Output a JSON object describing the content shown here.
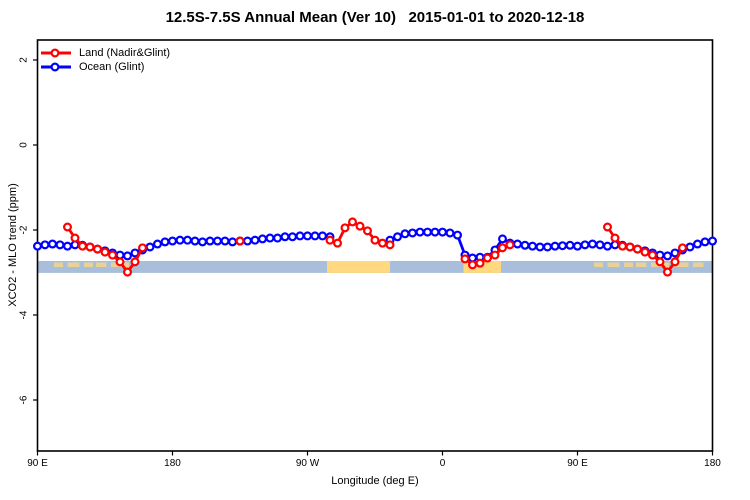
{
  "title": "12.5S-7.5S Annual Mean (Ver 10)   2015-01-01 to 2020-12-18",
  "chart_data": {
    "type": "line",
    "title": "12.5S-7.5S Annual Mean (Ver 10)   2015-01-01 to 2020-12-18",
    "xlabel": "Longitude (deg E)",
    "ylabel": "XCO2 - MLO trend (ppm)",
    "grid": false,
    "x_axis": {
      "min": 90,
      "max": 540,
      "note": "longitude increases eastward and wraps: 90E-180-90W-0-90E-180",
      "ticks": [
        {
          "pos": 90,
          "label": "90 E"
        },
        {
          "pos": 180,
          "label": "180"
        },
        {
          "pos": 270,
          "label": "90 W"
        },
        {
          "pos": 360,
          "label": "0"
        },
        {
          "pos": 450,
          "label": "90 E"
        },
        {
          "pos": 540,
          "label": "180"
        }
      ]
    },
    "y_axis": {
      "min": -7.2,
      "max": 2.47,
      "ticks": [
        {
          "pos": 2,
          "label": "2"
        },
        {
          "pos": 0,
          "label": "0"
        },
        {
          "pos": -2,
          "label": "-2"
        },
        {
          "pos": -4,
          "label": "-4"
        },
        {
          "pos": -6,
          "label": "-6"
        }
      ]
    },
    "legend": {
      "position": "top-left"
    },
    "series": [
      {
        "name": "Ocean (Glint)",
        "color": "#0000ff",
        "marker": "open-circle",
        "segments": [
          [
            [
              90,
              -2.38
            ],
            [
              95,
              -2.35
            ],
            [
              100,
              -2.33
            ],
            [
              105,
              -2.35
            ],
            [
              110,
              -2.38
            ],
            [
              115,
              -2.35
            ],
            [
              120,
              -2.36
            ],
            [
              125,
              -2.4
            ],
            [
              130,
              -2.45
            ],
            [
              135,
              -2.49
            ],
            [
              140,
              -2.54
            ],
            [
              145,
              -2.59
            ],
            [
              150,
              -2.61
            ],
            [
              155,
              -2.54
            ],
            [
              160,
              -2.47
            ],
            [
              165,
              -2.4
            ],
            [
              170,
              -2.33
            ],
            [
              175,
              -2.28
            ],
            [
              180,
              -2.26
            ],
            [
              185,
              -2.24
            ],
            [
              190,
              -2.24
            ],
            [
              195,
              -2.26
            ],
            [
              200,
              -2.28
            ],
            [
              205,
              -2.26
            ],
            [
              210,
              -2.26
            ],
            [
              215,
              -2.26
            ],
            [
              220,
              -2.28
            ],
            [
              225,
              -2.26
            ],
            [
              230,
              -2.26
            ],
            [
              235,
              -2.24
            ],
            [
              240,
              -2.21
            ],
            [
              245,
              -2.19
            ],
            [
              250,
              -2.19
            ],
            [
              255,
              -2.16
            ],
            [
              260,
              -2.16
            ],
            [
              265,
              -2.14
            ],
            [
              270,
              -2.14
            ],
            [
              275,
              -2.14
            ],
            [
              280,
              -2.14
            ],
            [
              285,
              -2.16
            ]
          ],
          [
            [
              325,
              -2.24
            ],
            [
              330,
              -2.16
            ],
            [
              335,
              -2.09
            ],
            [
              340,
              -2.07
            ],
            [
              345,
              -2.05
            ],
            [
              350,
              -2.05
            ],
            [
              355,
              -2.05
            ],
            [
              360,
              -2.05
            ],
            [
              365,
              -2.07
            ],
            [
              370,
              -2.12
            ],
            [
              375,
              -2.59
            ],
            [
              380,
              -2.66
            ],
            [
              385,
              -2.64
            ],
            [
              390,
              -2.64
            ],
            [
              395,
              -2.47
            ],
            [
              400,
              -2.21
            ],
            [
              405,
              -2.31
            ],
            [
              410,
              -2.33
            ],
            [
              415,
              -2.36
            ],
            [
              420,
              -2.38
            ],
            [
              425,
              -2.4
            ],
            [
              430,
              -2.4
            ],
            [
              435,
              -2.38
            ],
            [
              440,
              -2.37
            ],
            [
              445,
              -2.36
            ],
            [
              450,
              -2.38
            ],
            [
              455,
              -2.35
            ],
            [
              460,
              -2.33
            ],
            [
              465,
              -2.35
            ],
            [
              470,
              -2.38
            ],
            [
              475,
              -2.35
            ],
            [
              480,
              -2.36
            ],
            [
              485,
              -2.4
            ],
            [
              490,
              -2.45
            ],
            [
              495,
              -2.49
            ],
            [
              500,
              -2.54
            ],
            [
              505,
              -2.59
            ],
            [
              510,
              -2.61
            ],
            [
              515,
              -2.54
            ],
            [
              520,
              -2.47
            ],
            [
              525,
              -2.4
            ],
            [
              530,
              -2.33
            ],
            [
              535,
              -2.28
            ],
            [
              540,
              -2.26
            ]
          ]
        ]
      },
      {
        "name": "Land (Nadir&Glint)",
        "color": "#ff0000",
        "marker": "open-circle",
        "segments": [
          [
            [
              110,
              -1.93
            ],
            [
              115,
              -2.19
            ],
            [
              120,
              -2.38
            ],
            [
              125,
              -2.4
            ],
            [
              130,
              -2.45
            ],
            [
              135,
              -2.52
            ],
            [
              140,
              -2.59
            ],
            [
              145,
              -2.75
            ],
            [
              150,
              -2.99
            ],
            [
              155,
              -2.75
            ],
            [
              160,
              -2.42
            ]
          ],
          [
            [
              225,
              -2.26
            ]
          ],
          [
            [
              285,
              -2.24
            ],
            [
              290,
              -2.31
            ],
            [
              295,
              -1.95
            ],
            [
              300,
              -1.81
            ],
            [
              305,
              -1.91
            ],
            [
              310,
              -2.02
            ],
            [
              315,
              -2.24
            ],
            [
              320,
              -2.31
            ],
            [
              325,
              -2.35
            ]
          ],
          [
            [
              375,
              -2.68
            ],
            [
              380,
              -2.82
            ],
            [
              385,
              -2.78
            ],
            [
              390,
              -2.66
            ],
            [
              395,
              -2.59
            ],
            [
              400,
              -2.42
            ],
            [
              405,
              -2.35
            ]
          ],
          [
            [
              470,
              -1.93
            ],
            [
              475,
              -2.19
            ],
            [
              480,
              -2.38
            ],
            [
              485,
              -2.4
            ],
            [
              490,
              -2.45
            ],
            [
              495,
              -2.52
            ],
            [
              500,
              -2.59
            ],
            [
              505,
              -2.75
            ],
            [
              510,
              -2.99
            ],
            [
              515,
              -2.75
            ],
            [
              520,
              -2.42
            ]
          ]
        ]
      }
    ],
    "surface_band": {
      "meaning": "ocean/land geography strip along the latitude zone",
      "value_top": -2.73,
      "value_bottom": -3.01,
      "ocean_color": "#a9bedb",
      "land_color": "#ffd87f",
      "land_patches_deg": [
        [
          283,
          325
        ],
        [
          374,
          399
        ]
      ],
      "island_speckles_deg": [
        [
          101,
          107
        ],
        [
          110,
          118
        ],
        [
          121,
          127
        ],
        [
          129,
          136
        ],
        [
          139,
          151
        ],
        [
          461,
          467
        ],
        [
          470,
          478
        ],
        [
          481,
          487
        ],
        [
          489,
          496
        ],
        [
          499,
          511
        ],
        [
          513,
          524
        ],
        [
          527,
          534
        ]
      ]
    }
  }
}
